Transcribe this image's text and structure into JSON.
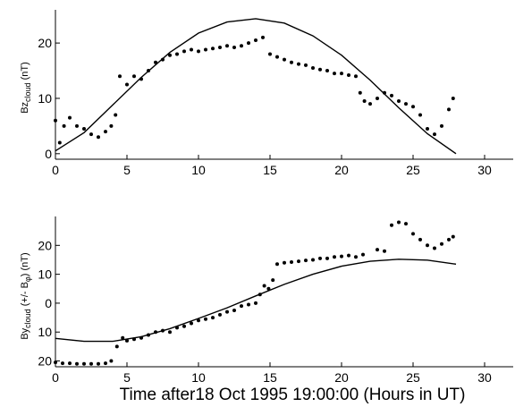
{
  "figure": {
    "xlabel": "Time after18  Oct  1995 19:00:00 (Hours in UT)"
  },
  "chart_data": [
    {
      "type": "scatter",
      "ylabel": "Bz_cloud (nT)",
      "xlim": [
        0,
        32
      ],
      "ylim": [
        -1,
        26
      ],
      "xticks": [
        0,
        5,
        10,
        15,
        20,
        25,
        30
      ],
      "yticks": [
        0,
        10,
        20
      ],
      "yticklabels": [
        "0",
        "10",
        "20"
      ],
      "grid": false,
      "series": [
        {
          "kind": "points",
          "x": [
            0,
            0.3,
            0.6,
            1,
            1.5,
            2,
            2.5,
            3,
            3.5,
            3.9,
            4.2,
            4.5,
            5,
            5.5,
            6,
            6.5,
            7,
            7.5,
            8,
            8.5,
            9,
            9.5,
            10,
            10.5,
            11,
            11.5,
            12,
            12.5,
            13,
            13.5,
            14,
            14.5,
            15,
            15.5,
            16,
            16.5,
            17,
            17.5,
            18,
            18.5,
            19,
            19.5,
            20,
            20.5,
            21,
            21.3,
            21.6,
            22,
            22.5,
            23,
            23.5,
            24,
            24.5,
            25,
            25.5,
            26,
            26.5,
            27,
            27.5,
            27.8
          ],
          "y": [
            6,
            2,
            5,
            6.5,
            5,
            4.5,
            3.5,
            3,
            4,
            5,
            7,
            14,
            12.5,
            14,
            13.5,
            15,
            16.5,
            17,
            17.8,
            18,
            18.5,
            18.8,
            18.5,
            18.8,
            19,
            19.2,
            19.5,
            19.2,
            19.5,
            20,
            20.5,
            21,
            18,
            17.5,
            17,
            16.5,
            16.2,
            16,
            15.5,
            15.2,
            15,
            14.5,
            14.5,
            14.2,
            14,
            11,
            9.5,
            9,
            10,
            11,
            10.5,
            9.5,
            9,
            8.5,
            7,
            4.5,
            3.5,
            5,
            8,
            10
          ]
        },
        {
          "kind": "curve",
          "x": [
            0,
            2,
            4,
            6,
            8,
            10,
            12,
            14,
            16,
            18,
            20,
            22,
            24,
            26,
            28
          ],
          "y": [
            0.5,
            3.8,
            8.8,
            13.8,
            18.3,
            21.8,
            23.8,
            24.4,
            23.6,
            21.3,
            17.8,
            13.3,
            8.3,
            3.6,
            0
          ]
        }
      ]
    },
    {
      "type": "scatter",
      "ylabel": "By_cloud (+/- B_φ) (nT)",
      "xlim": [
        0,
        32
      ],
      "ylim": [
        -22,
        30
      ],
      "xticks": [
        0,
        5,
        10,
        15,
        20,
        25,
        30
      ],
      "yticks": [
        -20,
        -10,
        0,
        10,
        20
      ],
      "yticklabels": [
        "20",
        "10",
        "0",
        "10",
        "20"
      ],
      "grid": false,
      "series": [
        {
          "kind": "points",
          "x": [
            0,
            0.5,
            1,
            1.5,
            2,
            2.5,
            3,
            3.5,
            3.9,
            4.3,
            4.7,
            5,
            5.5,
            6,
            6.5,
            7,
            7.5,
            8,
            8.5,
            9,
            9.5,
            10,
            10.5,
            11,
            11.5,
            12,
            12.5,
            13,
            13.5,
            14,
            14.3,
            14.6,
            14.9,
            15.2,
            15.5,
            16,
            16.5,
            17,
            17.5,
            18,
            18.5,
            19,
            19.5,
            20,
            20.5,
            21,
            21.5,
            22.5,
            23,
            23.5,
            24,
            24.5,
            25,
            25.5,
            26,
            26.5,
            27,
            27.5,
            27.8
          ],
          "y": [
            -20.5,
            -20.8,
            -20.8,
            -21,
            -21,
            -21,
            -21,
            -20.8,
            -20,
            -15,
            -12,
            -13,
            -12.5,
            -12,
            -11,
            -10,
            -9.5,
            -10,
            -8.5,
            -8,
            -7,
            -6,
            -5.5,
            -5,
            -4,
            -3,
            -2.5,
            -1,
            -0.5,
            0,
            3,
            6,
            5,
            8,
            13.5,
            14,
            14.2,
            14.5,
            14.8,
            15,
            15.5,
            15.5,
            16,
            16.2,
            16.5,
            16,
            16.8,
            18.5,
            18,
            27,
            28,
            27.5,
            24,
            22,
            20,
            19,
            20.5,
            22,
            23
          ]
        },
        {
          "kind": "curve",
          "x": [
            0,
            2,
            4,
            6,
            8,
            10,
            12,
            14,
            16,
            18,
            20,
            22,
            24,
            26,
            28
          ],
          "y": [
            -12.2,
            -13.2,
            -13.2,
            -11.6,
            -8.8,
            -5.3,
            -1.6,
            2.5,
            6.5,
            10,
            12.8,
            14.5,
            15.2,
            14.9,
            13.5
          ]
        }
      ]
    }
  ]
}
